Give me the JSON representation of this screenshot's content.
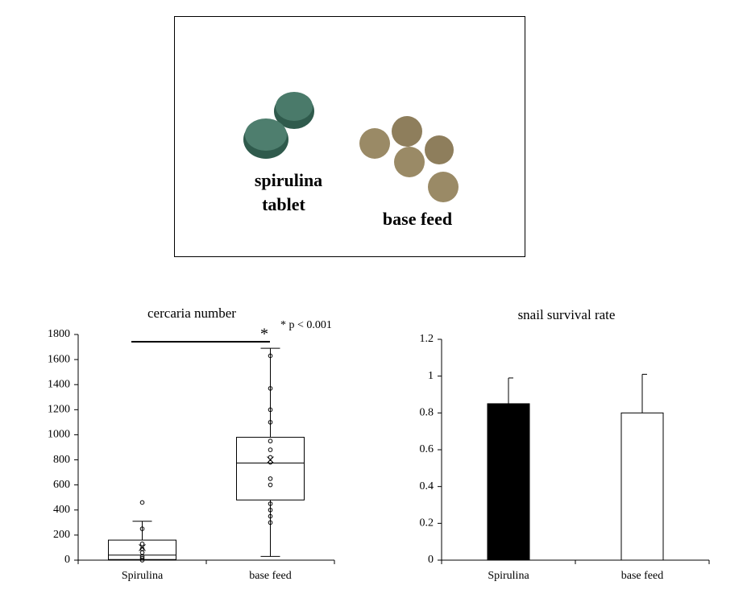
{
  "photo": {
    "tablet_label": [
      "spirulina",
      "tablet"
    ],
    "feed_label": "base feed"
  },
  "chart_data": [
    {
      "type": "box",
      "title": "cercaria number",
      "annotation": "* p < 0.001",
      "significance_mark": "*",
      "categories": [
        "Spirulina",
        "base feed"
      ],
      "boxes": [
        {
          "min": 0,
          "q1": 5,
          "median": 40,
          "q3": 160,
          "max": 310,
          "mean": 100,
          "points": [
            0,
            15,
            30,
            60,
            90,
            130,
            250,
            460
          ]
        },
        {
          "min": 30,
          "q1": 480,
          "median": 775,
          "q3": 980,
          "max": 1690,
          "mean": 800,
          "points": [
            300,
            350,
            400,
            450,
            600,
            650,
            780,
            820,
            880,
            950,
            1100,
            1200,
            1370,
            1630
          ]
        }
      ],
      "ylim": [
        0,
        1800
      ],
      "yticks": [
        0,
        200,
        400,
        600,
        800,
        1000,
        1200,
        1400,
        1600,
        1800
      ]
    },
    {
      "type": "bar",
      "title": "snail survival rate",
      "categories": [
        "Spirulina",
        "base feed"
      ],
      "values": [
        0.85,
        0.8
      ],
      "errors": [
        0.14,
        0.21
      ],
      "colors": [
        "#000000",
        "#ffffff"
      ],
      "ylim": [
        0,
        1.2
      ],
      "yticks": [
        0,
        0.2,
        0.4,
        0.6,
        0.8,
        1,
        1.2
      ]
    }
  ]
}
